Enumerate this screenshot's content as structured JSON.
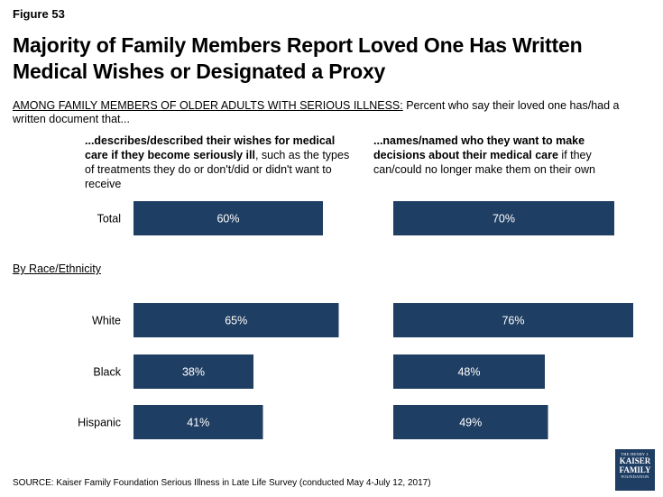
{
  "figure_label": "Figure 53",
  "title": "Majority of Family Members Report Loved One Has Written Medical Wishes or Designated a Proxy",
  "subtitle": {
    "prefix": "AMONG FAMILY MEMBERS OF OLDER ADULTS WITH SERIOUS ILLNESS:",
    "text": " Percent who say their loved one has/had a written document that..."
  },
  "columns": [
    {
      "bold": "...describes/described their wishes for medical care if they become seriously ill",
      "rest": ", such as the types of treatments they do or don't/did or didn't want to receive"
    },
    {
      "bold": "...names/named who they want to make decisions about their medical care",
      "rest": " if they can/could no longer make them on their own"
    }
  ],
  "group_label": "By Race/Ethnicity",
  "source": "SOURCE: Kaiser Family Foundation Serious Illness in Late Life Survey (conducted May 4-July 12, 2017)",
  "logo": {
    "line1": "THE HENRY J.",
    "line2a": "KAISER",
    "line2b": "FAMILY",
    "line3": "FOUNDATION"
  },
  "colors": {
    "bar": "#1f3e63",
    "bar_text": "#ffffff"
  },
  "chart_data": {
    "type": "bar",
    "orientation": "horizontal",
    "categories": [
      "Total",
      "White",
      "Black",
      "Hispanic"
    ],
    "series": [
      {
        "values": [
          60,
          65,
          38,
          41
        ],
        "labels": [
          "60%",
          "65%",
          "38%",
          "41%"
        ]
      },
      {
        "values": [
          70,
          76,
          48,
          49
        ],
        "labels": [
          "70%",
          "76%",
          "48%",
          "49%"
        ]
      }
    ],
    "xlim": [
      0,
      100
    ],
    "grid": false,
    "legend": "none"
  }
}
